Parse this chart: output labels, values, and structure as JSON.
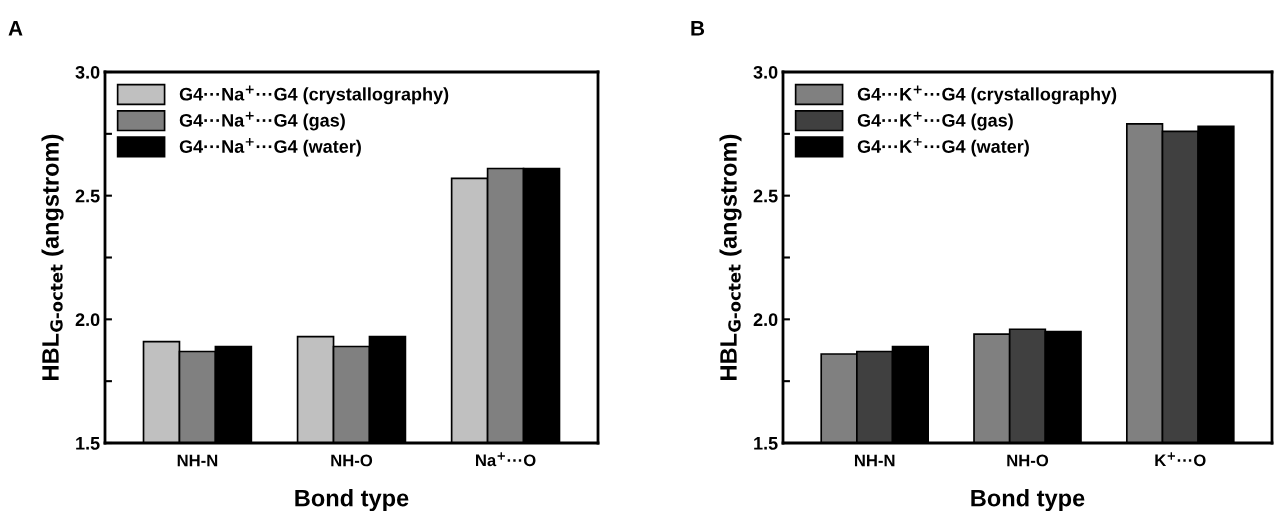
{
  "chart_data": [
    {
      "type": "bar",
      "annotations": [
        "A"
      ],
      "xlabel": "Bond type",
      "ylabel": "HBL$_{G-octet}$ (angstrom)",
      "categories": [
        "NH-N",
        "NH-O",
        "Na$^{+}$···O"
      ],
      "series": [
        {
          "name": "G4···Na$^{+}$···G4 (crystallography)",
          "color": "#c0c0c0",
          "values": [
            1.91,
            1.93,
            2.57
          ]
        },
        {
          "name": "G4···Na$^{+}$···G4 (gas)",
          "color": "#808080",
          "values": [
            1.87,
            1.89,
            2.61
          ]
        },
        {
          "name": "G4···Na$^{+}$···G4 (water)",
          "color": "#000000",
          "values": [
            1.89,
            1.93,
            2.61
          ]
        }
      ],
      "ylim": [
        1.5,
        3.0
      ],
      "yticks": [
        {
          "value": 1.5,
          "label": "1.5"
        },
        {
          "value": 1.75,
          "label": null
        },
        {
          "value": 2.0,
          "label": "2.0"
        },
        {
          "value": 2.25,
          "label": null
        },
        {
          "value": 2.5,
          "label": "2.5"
        },
        {
          "value": 2.75,
          "label": null
        },
        {
          "value": 3.0,
          "label": "3.0"
        }
      ],
      "legend": "top left",
      "grid": false
    },
    {
      "type": "bar",
      "annotations": [
        "B"
      ],
      "xlabel": "Bond type",
      "ylabel": "HBL$_{G-octet}$ (angstrom)",
      "categories": [
        "NH-N",
        "NH-O",
        "K$^{+}$···O"
      ],
      "series": [
        {
          "name": "G4···K$^{+}$···G4 (crystallography)",
          "color": "#808080",
          "values": [
            1.86,
            1.94,
            2.79
          ]
        },
        {
          "name": "G4···K$^{+}$···G4 (gas)",
          "color": "#404040",
          "values": [
            1.87,
            1.96,
            2.76
          ]
        },
        {
          "name": "G4···K$^{+}$···G4 (water)",
          "color": "#000000",
          "values": [
            1.89,
            1.95,
            2.78
          ]
        }
      ],
      "ylim": [
        1.5,
        3.0
      ],
      "yticks": [
        {
          "value": 1.5,
          "label": "1.5"
        },
        {
          "value": 1.75,
          "label": null
        },
        {
          "value": 2.0,
          "label": "2.0"
        },
        {
          "value": 2.25,
          "label": null
        },
        {
          "value": 2.5,
          "label": "2.5"
        },
        {
          "value": 2.75,
          "label": null
        },
        {
          "value": 3.0,
          "label": "3.0"
        }
      ],
      "legend": "top left",
      "grid": false
    }
  ]
}
